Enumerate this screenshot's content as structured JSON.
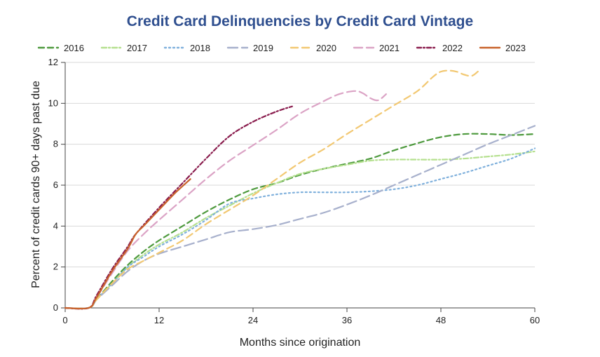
{
  "chart_data": {
    "type": "line",
    "title": "Credit Card Delinquencies by Credit Card Vintage",
    "xlabel": "Months since origination",
    "ylabel": "Percent of credit cards 90+ days past due",
    "xlim": [
      0,
      60
    ],
    "ylim": [
      0,
      12
    ],
    "xticks": [
      "0",
      "12",
      "24",
      "36",
      "48",
      "60"
    ],
    "yticks": [
      "0",
      "2",
      "4",
      "6",
      "8",
      "10",
      "12"
    ],
    "grid": "horizontal",
    "legend_position": "top",
    "series": [
      {
        "name": "2016",
        "color": "#4e9a3e",
        "dash": "8,5",
        "x": [
          0,
          3,
          4,
          6,
          8,
          10,
          12,
          15,
          18,
          21,
          24,
          27,
          30,
          33,
          36,
          39,
          42,
          45,
          48,
          51,
          54,
          57,
          60
        ],
        "y": [
          0,
          0,
          0.4,
          1.3,
          2.1,
          2.75,
          3.3,
          4.0,
          4.7,
          5.3,
          5.8,
          6.1,
          6.5,
          6.8,
          7.05,
          7.3,
          7.7,
          8.05,
          8.35,
          8.5,
          8.5,
          8.45,
          8.5
        ]
      },
      {
        "name": "2017",
        "color": "#b5e08f",
        "dash": "7,3,2,3",
        "x": [
          0,
          3,
          4,
          6,
          8,
          10,
          12,
          15,
          18,
          21,
          24,
          27,
          30,
          33,
          36,
          39,
          42,
          45,
          48,
          51,
          54,
          57,
          60
        ],
        "y": [
          0,
          0,
          0.4,
          1.2,
          2.0,
          2.6,
          3.1,
          3.7,
          4.4,
          5.0,
          5.6,
          6.1,
          6.55,
          6.8,
          7.0,
          7.2,
          7.25,
          7.25,
          7.25,
          7.3,
          7.4,
          7.5,
          7.65
        ]
      },
      {
        "name": "2018",
        "color": "#7fb0dc",
        "dash": "2,4",
        "x": [
          0,
          3,
          4,
          6,
          8,
          10,
          12,
          15,
          18,
          21,
          24,
          27,
          30,
          33,
          36,
          39,
          42,
          45,
          48,
          51,
          54,
          57,
          60
        ],
        "y": [
          0,
          0,
          0.4,
          1.2,
          2.0,
          2.5,
          3.0,
          3.6,
          4.3,
          5.1,
          5.35,
          5.55,
          5.65,
          5.65,
          5.65,
          5.7,
          5.8,
          6.0,
          6.3,
          6.6,
          6.95,
          7.3,
          7.8
        ]
      },
      {
        "name": "2019",
        "color": "#a7b0cc",
        "dash": "14,6",
        "x": [
          0,
          3,
          4,
          6,
          8,
          10,
          12,
          15,
          18,
          21,
          24,
          27,
          30,
          33,
          36,
          39,
          42,
          45,
          48,
          51,
          54,
          57,
          60
        ],
        "y": [
          0,
          0,
          0.4,
          1.1,
          1.8,
          2.3,
          2.65,
          3.0,
          3.35,
          3.7,
          3.85,
          4.05,
          4.35,
          4.65,
          5.05,
          5.5,
          6.0,
          6.5,
          7.0,
          7.5,
          8.0,
          8.45,
          8.9
        ]
      },
      {
        "name": "2020",
        "color": "#f2c872",
        "dash": "10,6",
        "x": [
          0,
          3,
          4,
          6,
          8,
          10,
          12,
          15,
          18,
          21,
          24,
          27,
          30,
          33,
          36,
          39,
          42,
          45,
          47,
          48,
          49,
          50,
          51,
          52,
          53
        ],
        "y": [
          0,
          0,
          0.4,
          1.2,
          1.9,
          2.3,
          2.7,
          3.3,
          4.1,
          4.8,
          5.5,
          6.3,
          7.1,
          7.75,
          8.5,
          9.2,
          9.9,
          10.6,
          11.3,
          11.55,
          11.6,
          11.55,
          11.4,
          11.35,
          11.65
        ]
      },
      {
        "name": "2021",
        "color": "#dba3c5",
        "dash": "12,6",
        "x": [
          0,
          3,
          4,
          6,
          8,
          10,
          12,
          15,
          18,
          21,
          24,
          27,
          30,
          33,
          35,
          37,
          38,
          39,
          40,
          41
        ],
        "y": [
          0,
          0,
          0.5,
          1.7,
          2.8,
          3.6,
          4.3,
          5.3,
          6.3,
          7.2,
          7.95,
          8.7,
          9.5,
          10.1,
          10.45,
          10.6,
          10.5,
          10.25,
          10.15,
          10.45
        ]
      },
      {
        "name": "2022",
        "color": "#8a1d4e",
        "dash": "6,3,2,3",
        "x": [
          0,
          3,
          4,
          6,
          8,
          9,
          12,
          15,
          18,
          21,
          24,
          27,
          29
        ],
        "y": [
          0,
          0,
          0.6,
          1.9,
          3.0,
          3.6,
          4.9,
          6.1,
          7.3,
          8.4,
          9.1,
          9.6,
          9.85
        ]
      },
      {
        "name": "2023",
        "color": "#c8622a",
        "dash": "",
        "x": [
          0,
          3,
          4,
          6,
          8,
          9,
          10,
          12,
          14,
          16
        ],
        "y": [
          0,
          0,
          0.5,
          1.8,
          2.9,
          3.6,
          4.0,
          4.8,
          5.6,
          6.3
        ]
      }
    ]
  }
}
